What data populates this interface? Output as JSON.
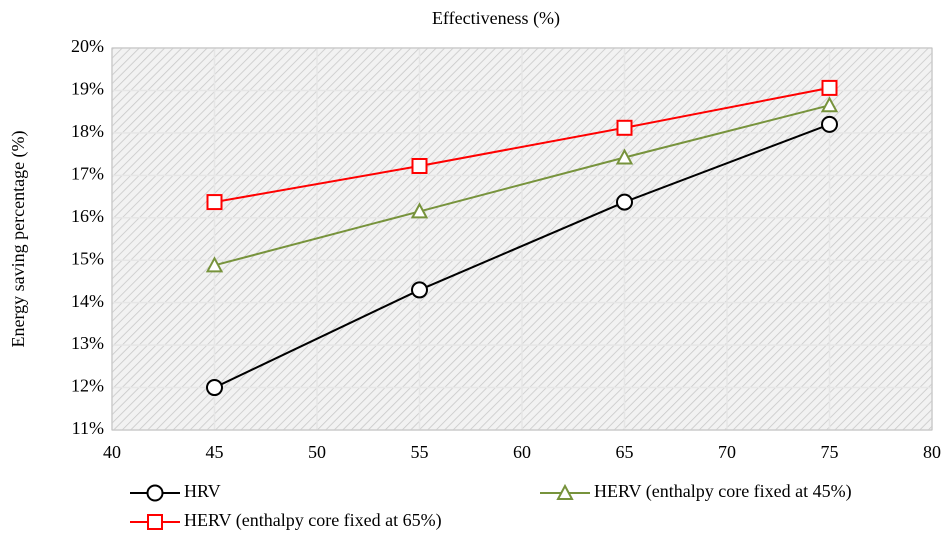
{
  "chart_data": {
    "type": "line",
    "title": "Effectiveness (%)",
    "y_label": "Energy saving percentage (%)",
    "xlim": [
      40,
      80
    ],
    "xticks": [
      40,
      45,
      50,
      55,
      60,
      65,
      70,
      75,
      80
    ],
    "ylim": [
      11,
      20
    ],
    "yticks": [
      {
        "value": 11,
        "label": "11%"
      },
      {
        "value": 12,
        "label": "12%"
      },
      {
        "value": 13,
        "label": "13%"
      },
      {
        "value": 14,
        "label": "14%"
      },
      {
        "value": 15,
        "label": "15%"
      },
      {
        "value": 16,
        "label": "16%"
      },
      {
        "value": 17,
        "label": "17%"
      },
      {
        "value": 18,
        "label": "18%"
      },
      {
        "value": 19,
        "label": "19%"
      },
      {
        "value": 20,
        "label": "20%"
      }
    ],
    "grid": true,
    "legend": "bottom",
    "series": [
      {
        "name": "HRV",
        "color": "#000000",
        "marker": "circle",
        "x": [
          45,
          55,
          65,
          75
        ],
        "values": [
          12.0,
          14.3,
          16.37,
          18.2
        ]
      },
      {
        "name": "HERV (enthalpy core fixed at 45%)",
        "color": "#77933c",
        "marker": "triangle",
        "x": [
          45,
          55,
          65,
          75
        ],
        "values": [
          14.88,
          16.15,
          17.42,
          18.65
        ]
      },
      {
        "name": "HERV (enthalpy core fixed at 65%)",
        "color": "#ff0000",
        "marker": "square",
        "x": [
          45,
          55,
          65,
          75
        ],
        "values": [
          16.37,
          17.22,
          18.12,
          19.06
        ]
      }
    ]
  }
}
